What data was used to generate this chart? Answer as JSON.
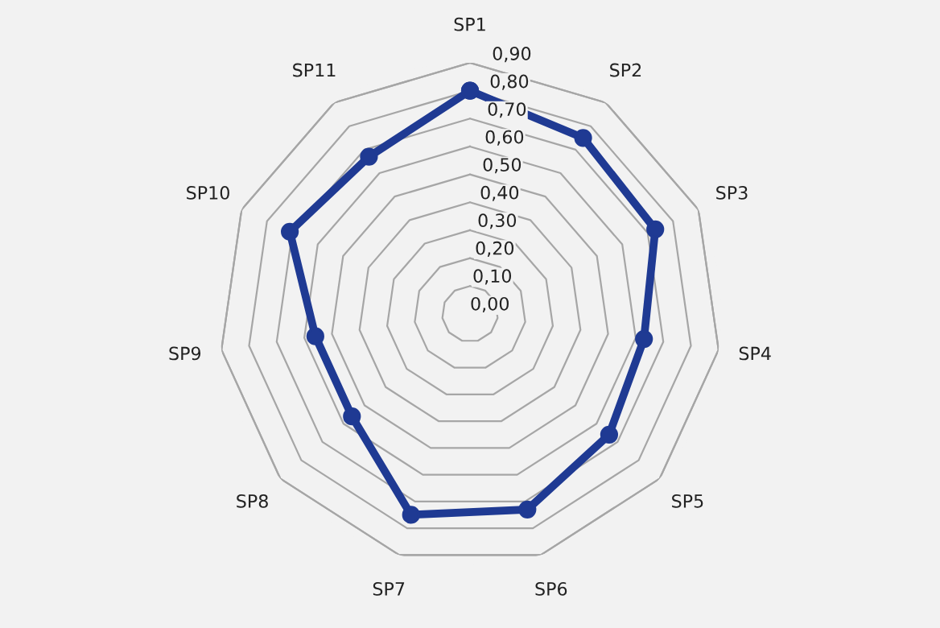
{
  "chart_data": {
    "type": "radar",
    "categories": [
      "SP1",
      "SP2",
      "SP3",
      "SP4",
      "SP5",
      "SP6",
      "SP7",
      "SP8",
      "SP9",
      "SP10",
      "SP11"
    ],
    "series": [
      {
        "color": "#1f3a93",
        "values": [
          0.8,
          0.75,
          0.73,
          0.63,
          0.66,
          0.73,
          0.75,
          0.56,
          0.56,
          0.71,
          0.67
        ]
      }
    ],
    "ylim": [
      0,
      0.9
    ],
    "yticks": [
      {
        "value": 0,
        "label": "0,00"
      },
      {
        "value": 0.1,
        "label": "0,10"
      },
      {
        "value": 0.2,
        "label": "0,20"
      },
      {
        "value": 0.3,
        "label": "0,30"
      },
      {
        "value": 0.4,
        "label": "0,40"
      },
      {
        "value": 0.5,
        "label": "0,50"
      },
      {
        "value": 0.6,
        "label": "0,60"
      },
      {
        "value": 0.7,
        "label": "0,70"
      },
      {
        "value": 0.8,
        "label": "0,80"
      },
      {
        "value": 0.9,
        "label": "0,90"
      }
    ],
    "grid": true,
    "marker": "circle",
    "line_style": "solid",
    "legend": false
  }
}
